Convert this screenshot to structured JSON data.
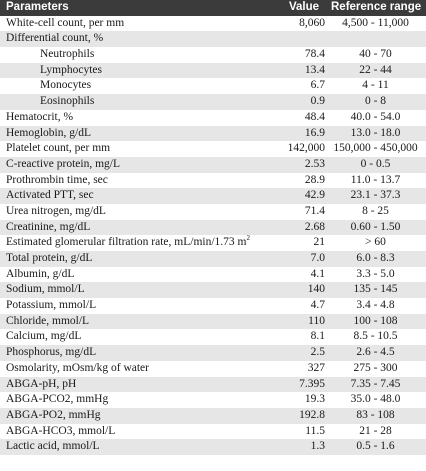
{
  "header": {
    "parameter": "Parameters",
    "value": "Value",
    "reference": "Reference range"
  },
  "rows": [
    {
      "parameter": "White-cell count, per mm",
      "value": "8,060",
      "reference": "4,500 - 11,000",
      "indent": false
    },
    {
      "parameter": "Differential count, %",
      "value": "",
      "reference": "",
      "indent": false
    },
    {
      "parameter": "Neutrophils",
      "value": "78.4",
      "reference": "40 - 70",
      "indent": true
    },
    {
      "parameter": "Lymphocytes",
      "value": "13.4",
      "reference": "22 - 44",
      "indent": true
    },
    {
      "parameter": "Monocytes",
      "value": "6.7",
      "reference": "4 - 11",
      "indent": true
    },
    {
      "parameter": "Eosinophils",
      "value": "0.9",
      "reference": "0 - 8",
      "indent": true
    },
    {
      "parameter": "Hematocrit, %",
      "value": "48.4",
      "reference": "40.0 - 54.0",
      "indent": false
    },
    {
      "parameter": "Hemoglobin, g/dL",
      "value": "16.9",
      "reference": "13.0 - 18.0",
      "indent": false
    },
    {
      "parameter": "Platelet count, per mm",
      "value": "142,000",
      "reference": "150,000 - 450,000",
      "indent": false
    },
    {
      "parameter": "C-reactive protein, mg/L",
      "value": "2.53",
      "reference": "0 - 0.5",
      "indent": false
    },
    {
      "parameter": "Prothrombin time, sec",
      "value": "28.9",
      "reference": "11.0 - 13.7",
      "indent": false
    },
    {
      "parameter": "Activated PTT, sec",
      "value": "42.9",
      "reference": "23.1 - 37.3",
      "indent": false
    },
    {
      "parameter": "Urea nitrogen, mg/dL",
      "value": "71.4",
      "reference": "8 - 25",
      "indent": false
    },
    {
      "parameter": "Creatinine, mg/dL",
      "value": "2.68",
      "reference": "0.60 - 1.50",
      "indent": false
    },
    {
      "parameter": "Estimated glomerular filtration rate, mL/min/1.73 m",
      "parameter_sup": "2",
      "value": "21",
      "reference": "> 60",
      "indent": false
    },
    {
      "parameter": "Total protein, g/dL",
      "value": "7.0",
      "reference": "6.0 - 8.3",
      "indent": false
    },
    {
      "parameter": "Albumin, g/dL",
      "value": "4.1",
      "reference": "3.3 - 5.0",
      "indent": false
    },
    {
      "parameter": "Sodium, mmol/L",
      "value": "140",
      "reference": "135 - 145",
      "indent": false
    },
    {
      "parameter": "Potassium, mmol/L",
      "value": "4.7",
      "reference": "3.4 - 4.8",
      "indent": false
    },
    {
      "parameter": "Chloride, mmol/L",
      "value": "110",
      "reference": "100 - 108",
      "indent": false
    },
    {
      "parameter": "Calcium, mg/dL",
      "value": "8.1",
      "reference": "8.5 - 10.5",
      "indent": false
    },
    {
      "parameter": "Phosphorus, mg/dL",
      "value": "2.5",
      "reference": "2.6 - 4.5",
      "indent": false
    },
    {
      "parameter": "Osmolarity, mOsm/kg of water",
      "value": "327",
      "reference": "275 - 300",
      "indent": false
    },
    {
      "parameter": "ABGA-pH, pH",
      "value": "7.395",
      "reference": "7.35 - 7.45",
      "indent": false
    },
    {
      "parameter": "ABGA-PCO2, mmHg",
      "value": "19.3",
      "reference": "35.0 - 48.0",
      "indent": false
    },
    {
      "parameter": "ABGA-PO2, mmHg",
      "value": "192.8",
      "reference": "83 - 108",
      "indent": false
    },
    {
      "parameter": "ABGA-HCO3, mmol/L",
      "value": "11.5",
      "reference": "21 - 28",
      "indent": false
    },
    {
      "parameter": "Lactic acid, mmol/L",
      "value": "1.3",
      "reference": "0.5 - 1.6",
      "indent": false
    }
  ]
}
